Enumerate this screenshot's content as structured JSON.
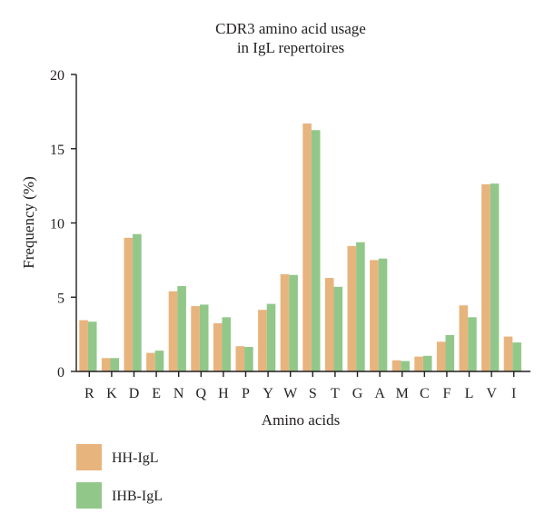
{
  "chart_data": {
    "type": "bar",
    "title": [
      "CDR3 amino acid usage",
      "in IgL repertoires"
    ],
    "xlabel": "Amino acids",
    "ylabel": "Frequency (%)",
    "ylim": [
      0,
      20
    ],
    "yticks": [
      0,
      5,
      10,
      15,
      20
    ],
    "grid": false,
    "legend_position": "bottom-left",
    "categories": [
      "R",
      "K",
      "D",
      "E",
      "N",
      "Q",
      "H",
      "P",
      "Y",
      "W",
      "S",
      "T",
      "G",
      "A",
      "M",
      "C",
      "F",
      "L",
      "V",
      "I"
    ],
    "series": [
      {
        "name": "HH-IgL",
        "color": "#e8b47e",
        "values": [
          3.45,
          0.9,
          9.0,
          1.25,
          5.4,
          4.4,
          3.25,
          1.7,
          4.15,
          6.55,
          16.7,
          6.3,
          8.45,
          7.5,
          0.75,
          1.0,
          2.0,
          4.45,
          12.6,
          2.35
        ]
      },
      {
        "name": "IHB-IgL",
        "color": "#92c78a",
        "values": [
          3.35,
          0.9,
          9.25,
          1.4,
          5.75,
          4.5,
          3.65,
          1.65,
          4.55,
          6.5,
          16.25,
          5.7,
          8.7,
          7.6,
          0.7,
          1.05,
          2.45,
          3.65,
          12.65,
          1.95
        ]
      }
    ]
  }
}
